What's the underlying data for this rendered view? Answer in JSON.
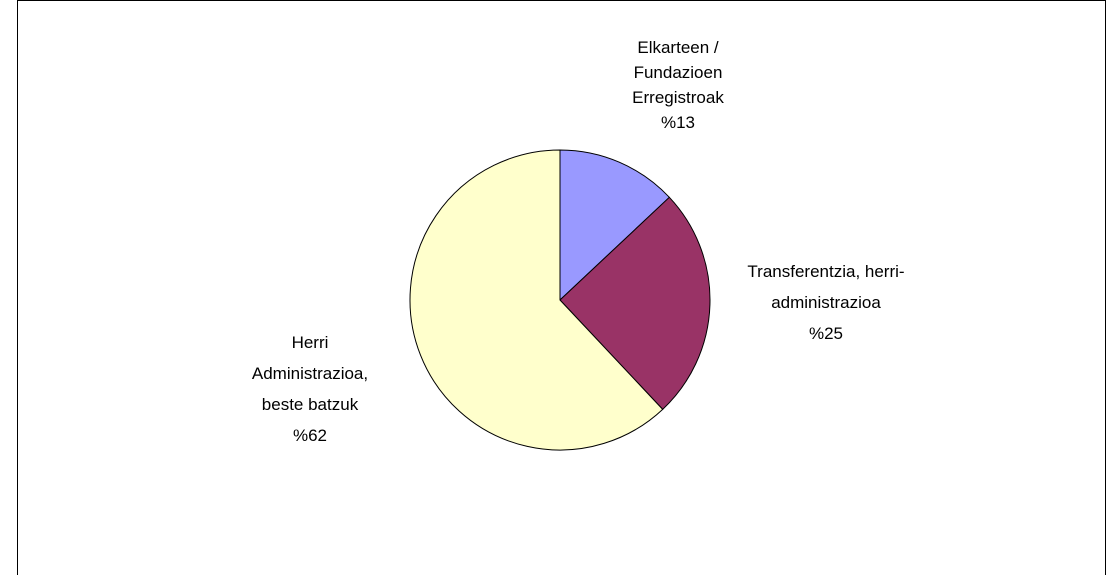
{
  "chart_data": {
    "type": "pie",
    "categories": [
      "Elkarteen / Fundazioen Erregistroak",
      "Transferentzia, herri-administrazioa",
      "Herri Administrazioa, beste batzuk"
    ],
    "values": [
      13,
      25,
      62
    ],
    "value_labels": [
      "%13",
      "%25",
      "%62"
    ],
    "colors": [
      "#9999ff",
      "#993366",
      "#ffffcc"
    ]
  }
}
